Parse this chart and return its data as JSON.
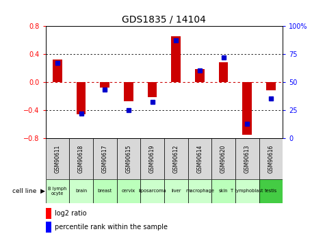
{
  "title": "GDS1835 / 14104",
  "gsm_labels": [
    "GSM90611",
    "GSM90618",
    "GSM90617",
    "GSM90615",
    "GSM90619",
    "GSM90612",
    "GSM90614",
    "GSM90620",
    "GSM90613",
    "GSM90616"
  ],
  "cell_labels": [
    "B lymph\nocyte",
    "brain",
    "breast",
    "cervix",
    "liposarcoma",
    "liver",
    "macrophage",
    "skin",
    "T lymphoblast",
    "testis"
  ],
  "cell_bg_colors": [
    "#ccffcc",
    "#ccffcc",
    "#bbffbb",
    "#bbffbb",
    "#ccffcc",
    "#ccffcc",
    "#ccffcc",
    "#bbffbb",
    "#ccffcc",
    "#44cc44"
  ],
  "log2_ratio": [
    0.32,
    -0.46,
    -0.08,
    -0.27,
    -0.22,
    0.65,
    0.18,
    0.28,
    -0.75,
    -0.12
  ],
  "percentile_rank": [
    67,
    22,
    43,
    25,
    32,
    87,
    60,
    72,
    13,
    35
  ],
  "ylim_left": [
    -0.8,
    0.8
  ],
  "ylim_right": [
    0,
    100
  ],
  "bar_color": "#cc0000",
  "dot_color": "#0000cc",
  "gsm_bg_color": "#d0d0d0",
  "dashed_zero_color": "#cc0000",
  "title_fontsize": 10,
  "bar_width": 0.4
}
